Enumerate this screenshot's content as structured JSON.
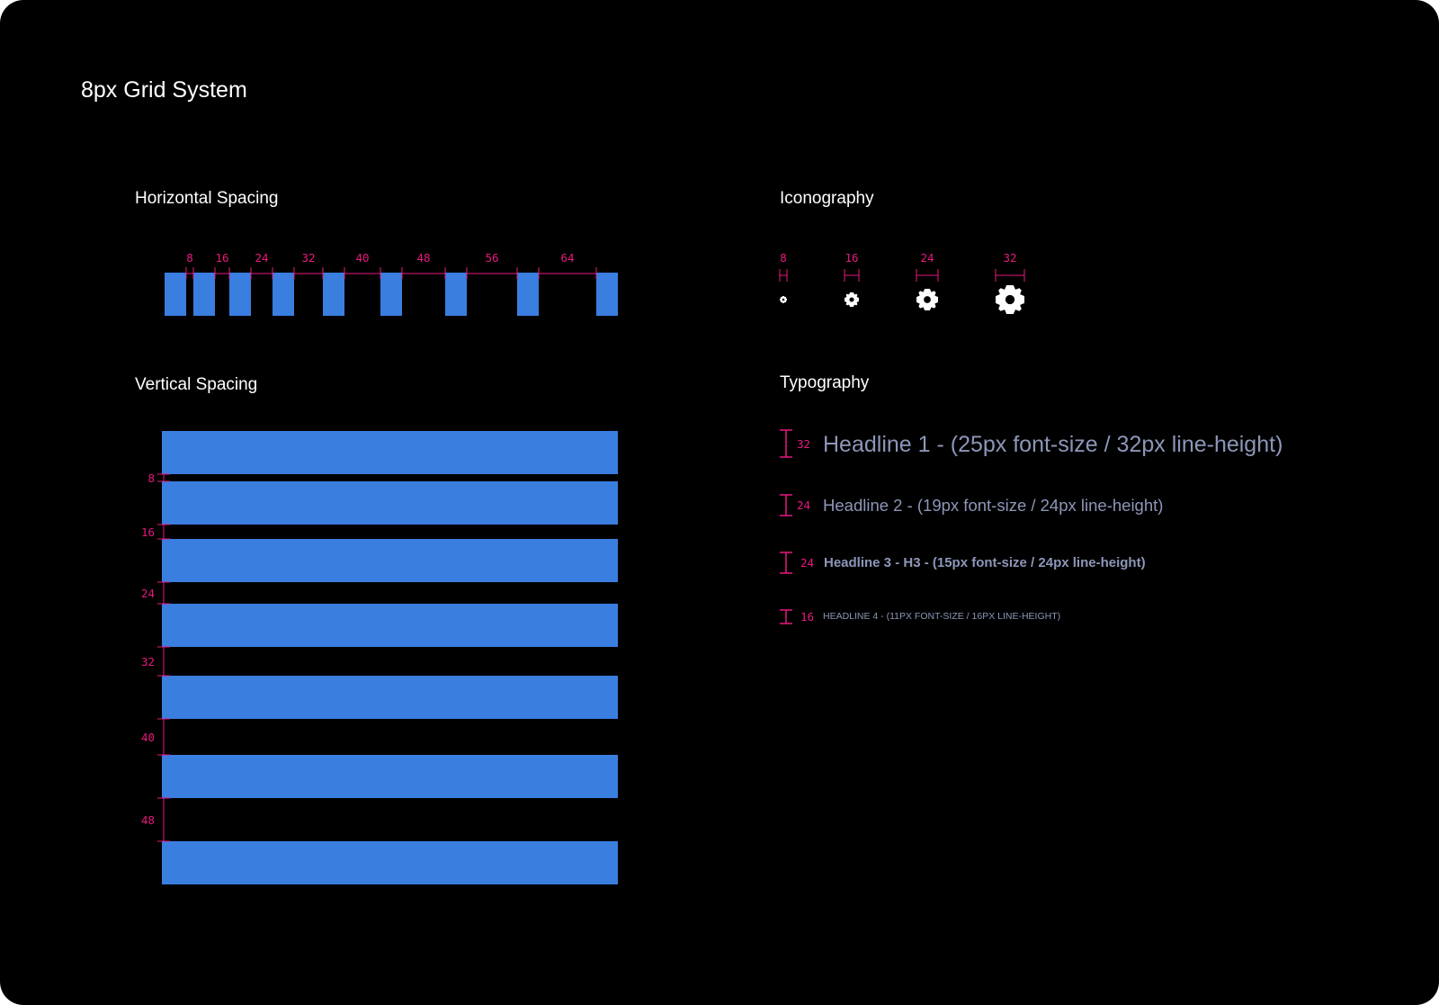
{
  "page": {
    "title": "8px Grid System"
  },
  "colors": {
    "background": "#000000",
    "block": "#3a7ee0",
    "measure": "#e8197f",
    "text": "#ffffff",
    "type_sample": "#8d96b8"
  },
  "horizontal": {
    "title": "Horizontal Spacing",
    "gaps": [
      "8",
      "16",
      "24",
      "32",
      "40",
      "48",
      "56",
      "64"
    ]
  },
  "vertical": {
    "title": "Vertical Spacing",
    "gaps": [
      "8",
      "16",
      "24",
      "32",
      "40",
      "48"
    ]
  },
  "iconography": {
    "title": "Iconography",
    "icon_name": "gear-icon",
    "sizes": [
      "8",
      "16",
      "24",
      "32"
    ]
  },
  "typography": {
    "title": "Typography",
    "samples": [
      {
        "line_height": "32",
        "label": "Headline 1 - (25px font-size / 32px line-height)"
      },
      {
        "line_height": "24",
        "label": "Headline 2  - (19px font-size / 24px line-height)"
      },
      {
        "line_height": "24",
        "label": "Headline 3 - H3 -  (15px font-size / 24px line-height)"
      },
      {
        "line_height": "16",
        "label": "Headline 4 - (11px font-size / 16px line-height)"
      }
    ]
  }
}
